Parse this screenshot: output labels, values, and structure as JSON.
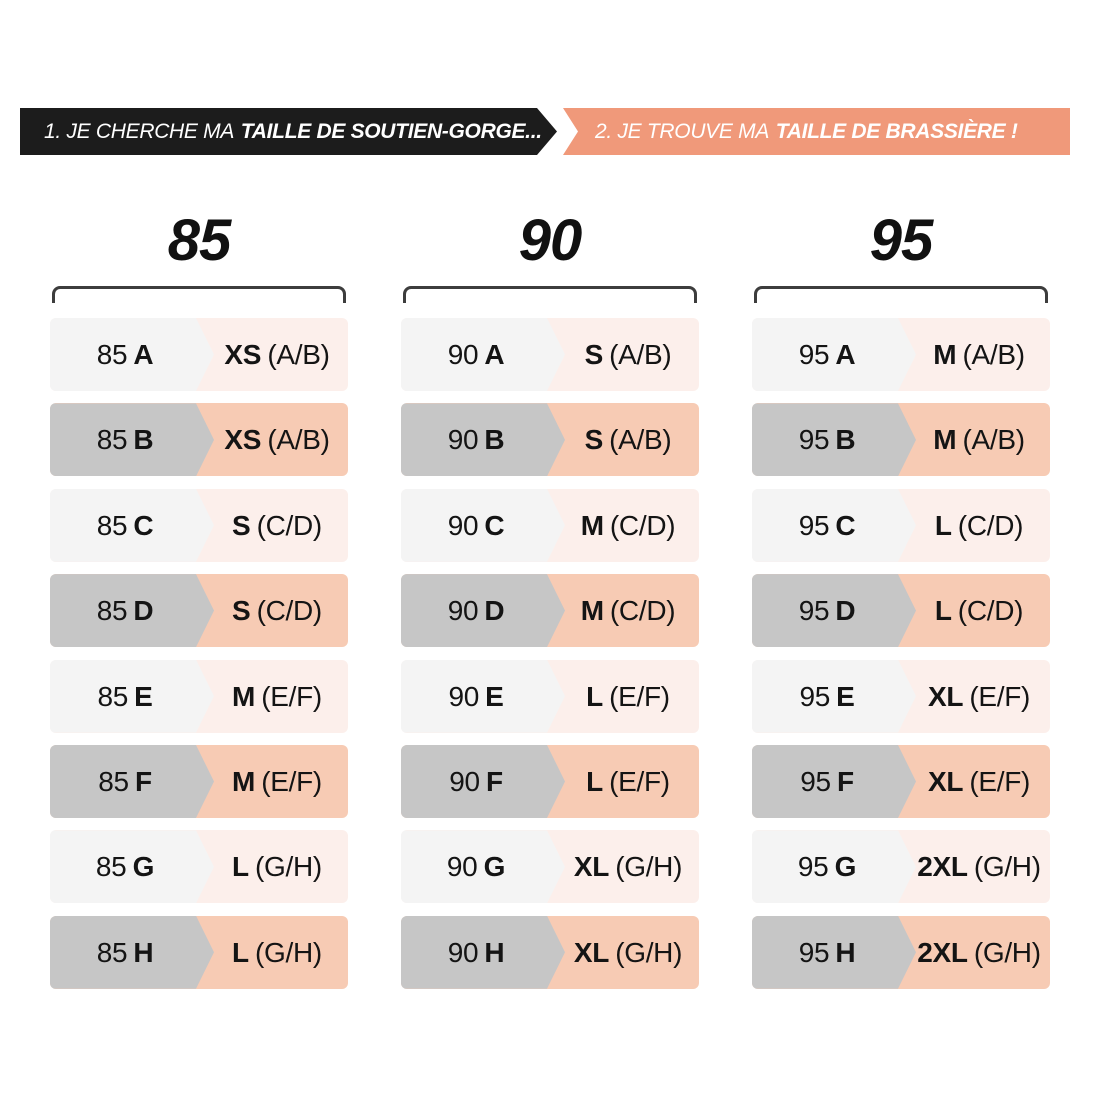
{
  "banners": {
    "step1": {
      "prefix": "1. JE CHERCHE MA",
      "emphasis": "TAILLE DE SOUTIEN-GORGE..."
    },
    "step2": {
      "prefix": "2. JE TROUVE MA",
      "emphasis": "TAILLE DE BRASSIÈRE !"
    }
  },
  "colors": {
    "banner_black": "#1c1c1c",
    "banner_salmon": "#f0997a",
    "row_light_left": "#f4f4f4",
    "row_light_right": "#fcefeb",
    "row_dark_left": "#c6c6c6",
    "row_dark_right": "#f7cbb4",
    "bracket": "#3d3d3d",
    "text": "#141414"
  },
  "columns": [
    {
      "header": "85",
      "rows": [
        {
          "bra": "85",
          "cup": "A",
          "size": "XS",
          "range": "(A/B)"
        },
        {
          "bra": "85",
          "cup": "B",
          "size": "XS",
          "range": "(A/B)"
        },
        {
          "bra": "85",
          "cup": "C",
          "size": "S",
          "range": "(C/D)"
        },
        {
          "bra": "85",
          "cup": "D",
          "size": "S",
          "range": "(C/D)"
        },
        {
          "bra": "85",
          "cup": "E",
          "size": "M",
          "range": "(E/F)"
        },
        {
          "bra": "85",
          "cup": "F",
          "size": "M",
          "range": "(E/F)"
        },
        {
          "bra": "85",
          "cup": "G",
          "size": "L",
          "range": "(G/H)"
        },
        {
          "bra": "85",
          "cup": "H",
          "size": "L",
          "range": "(G/H)"
        }
      ]
    },
    {
      "header": "90",
      "rows": [
        {
          "bra": "90",
          "cup": "A",
          "size": "S",
          "range": "(A/B)"
        },
        {
          "bra": "90",
          "cup": "B",
          "size": "S",
          "range": "(A/B)"
        },
        {
          "bra": "90",
          "cup": "C",
          "size": "M",
          "range": "(C/D)"
        },
        {
          "bra": "90",
          "cup": "D",
          "size": "M",
          "range": "(C/D)"
        },
        {
          "bra": "90",
          "cup": "E",
          "size": "L",
          "range": "(E/F)"
        },
        {
          "bra": "90",
          "cup": "F",
          "size": "L",
          "range": "(E/F)"
        },
        {
          "bra": "90",
          "cup": "G",
          "size": "XL",
          "range": "(G/H)"
        },
        {
          "bra": "90",
          "cup": "H",
          "size": "XL",
          "range": "(G/H)"
        }
      ]
    },
    {
      "header": "95",
      "rows": [
        {
          "bra": "95",
          "cup": "A",
          "size": "M",
          "range": "(A/B)"
        },
        {
          "bra": "95",
          "cup": "B",
          "size": "M",
          "range": "(A/B)"
        },
        {
          "bra": "95",
          "cup": "C",
          "size": "L",
          "range": "(C/D)"
        },
        {
          "bra": "95",
          "cup": "D",
          "size": "L",
          "range": "(C/D)"
        },
        {
          "bra": "95",
          "cup": "E",
          "size": "XL",
          "range": "(E/F)"
        },
        {
          "bra": "95",
          "cup": "F",
          "size": "XL",
          "range": "(E/F)"
        },
        {
          "bra": "95",
          "cup": "G",
          "size": "2XL",
          "range": "(G/H)"
        },
        {
          "bra": "95",
          "cup": "H",
          "size": "2XL",
          "range": "(G/H)"
        }
      ]
    }
  ],
  "chart_data": {
    "type": "table",
    "title": "1. JE CHERCHE MA TAILLE DE SOUTIEN-GORGE... 2. JE TROUVE MA TAILLE DE BRASSIÈRE !",
    "columns": [
      "Taille de soutien-gorge",
      "Taille de brassière"
    ],
    "groups": [
      "85",
      "90",
      "95"
    ],
    "rows": [
      [
        "85 A",
        "XS (A/B)"
      ],
      [
        "85 B",
        "XS (A/B)"
      ],
      [
        "85 C",
        "S (C/D)"
      ],
      [
        "85 D",
        "S (C/D)"
      ],
      [
        "85 E",
        "M (E/F)"
      ],
      [
        "85 F",
        "M (E/F)"
      ],
      [
        "85 G",
        "L (G/H)"
      ],
      [
        "85 H",
        "L (G/H)"
      ],
      [
        "90 A",
        "S (A/B)"
      ],
      [
        "90 B",
        "S (A/B)"
      ],
      [
        "90 C",
        "M (C/D)"
      ],
      [
        "90 D",
        "M (C/D)"
      ],
      [
        "90 E",
        "L (E/F)"
      ],
      [
        "90 F",
        "L (E/F)"
      ],
      [
        "90 G",
        "XL (G/H)"
      ],
      [
        "90 H",
        "XL (G/H)"
      ],
      [
        "95 A",
        "M (A/B)"
      ],
      [
        "95 B",
        "M (A/B)"
      ],
      [
        "95 C",
        "L (C/D)"
      ],
      [
        "95 D",
        "L (C/D)"
      ],
      [
        "95 E",
        "XL (E/F)"
      ],
      [
        "95 F",
        "XL (E/F)"
      ],
      [
        "95 G",
        "2XL (G/H)"
      ],
      [
        "95 H",
        "2XL (G/H)"
      ]
    ]
  }
}
